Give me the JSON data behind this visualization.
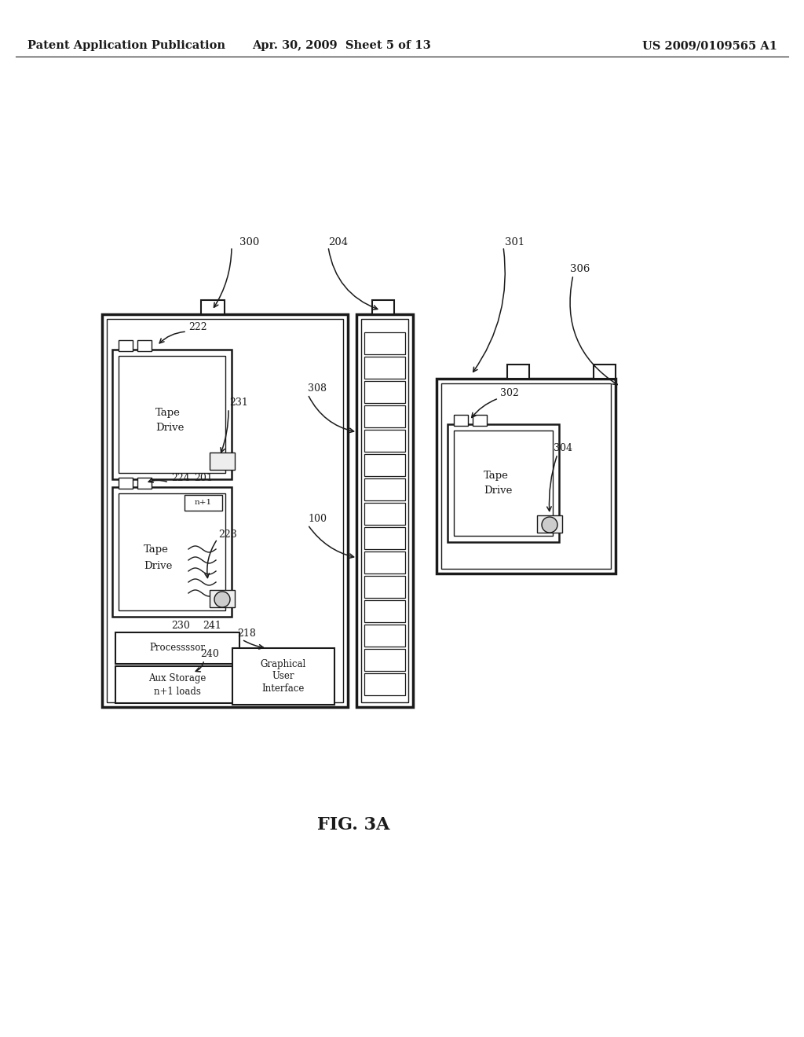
{
  "header_left": "Patent Application Publication",
  "header_center": "Apr. 30, 2009  Sheet 5 of 13",
  "header_right": "US 2009/0109565 A1",
  "fig_label": "FIG. 3A",
  "bg_color": "#ffffff",
  "line_color": "#1a1a1a"
}
